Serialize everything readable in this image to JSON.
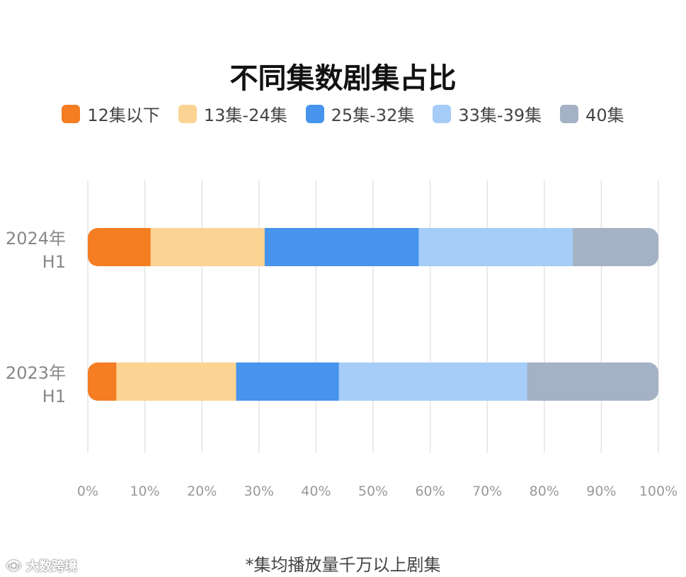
{
  "chart_data": {
    "type": "bar",
    "orientation": "horizontal",
    "stacked": true,
    "title": "不同集数剧集占比",
    "categories": [
      "2024年 H1",
      "2023年 H1"
    ],
    "category_lines": [
      [
        "2024年",
        "H1"
      ],
      [
        "2023年",
        "H1"
      ]
    ],
    "series": [
      {
        "name": "12集以下",
        "values": [
          11,
          5
        ],
        "color": "#f57d22"
      },
      {
        "name": "13集-24集",
        "values": [
          20,
          21
        ],
        "color": "#fbd392"
      },
      {
        "name": "25集-32集",
        "values": [
          27,
          18
        ],
        "color": "#4694ec"
      },
      {
        "name": "33集-39集",
        "values": [
          27,
          33
        ],
        "color": "#a6cdf8"
      },
      {
        "name": "40集",
        "values": [
          15,
          23
        ],
        "color": "#a5b2c5"
      }
    ],
    "xlim": [
      0,
      100
    ],
    "x_ticks": [
      "0%",
      "10%",
      "20%",
      "30%",
      "40%",
      "50%",
      "60%",
      "70%",
      "80%",
      "90%",
      "100%"
    ],
    "grid": "vertical",
    "legend_position": "top"
  },
  "footnote": "*集均播放量千万以上剧集",
  "watermark": {
    "icon": "weibo-eye-icon",
    "text": "大数跨境"
  }
}
